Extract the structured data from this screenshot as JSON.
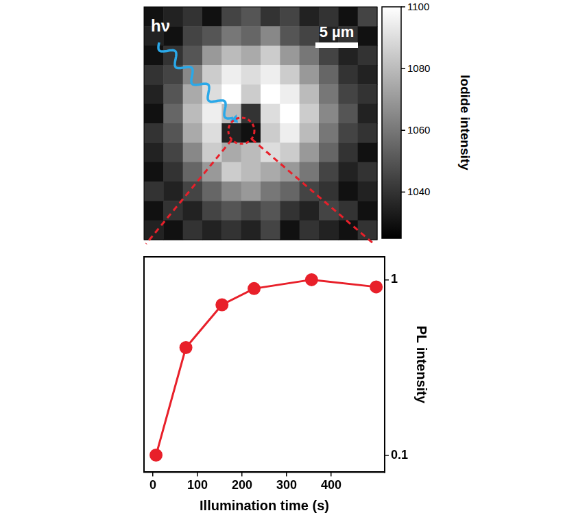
{
  "chart_data": [
    {
      "type": "heatmap",
      "annotations": [
        "hν",
        "5 µm"
      ],
      "cells": [
        [
          1030,
          1035,
          1040,
          1030,
          1045,
          1050,
          1040,
          1045,
          1035,
          1040,
          1030,
          1045
        ],
        [
          1035,
          1030,
          1045,
          1050,
          1060,
          1055,
          1065,
          1050,
          1045,
          1035,
          1040,
          1030
        ],
        [
          1030,
          1040,
          1050,
          1070,
          1080,
          1075,
          1085,
          1070,
          1060,
          1045,
          1035,
          1040
        ],
        [
          1040,
          1045,
          1065,
          1085,
          1095,
          1090,
          1095,
          1085,
          1070,
          1055,
          1040,
          1035
        ],
        [
          1035,
          1050,
          1075,
          1090,
          1100,
          1085,
          1100,
          1095,
          1080,
          1060,
          1045,
          1040
        ],
        [
          1030,
          1055,
          1080,
          1095,
          1080,
          1040,
          1090,
          1100,
          1085,
          1065,
          1050,
          1035
        ],
        [
          1040,
          1050,
          1075,
          1090,
          1035,
          1030,
          1085,
          1095,
          1080,
          1060,
          1045,
          1040
        ],
        [
          1035,
          1045,
          1065,
          1085,
          1075,
          1080,
          1090,
          1085,
          1070,
          1055,
          1040,
          1030
        ],
        [
          1030,
          1040,
          1055,
          1070,
          1085,
          1080,
          1075,
          1070,
          1060,
          1045,
          1035,
          1040
        ],
        [
          1040,
          1035,
          1045,
          1055,
          1065,
          1070,
          1060,
          1055,
          1045,
          1040,
          1030,
          1035
        ],
        [
          1030,
          1040,
          1035,
          1045,
          1050,
          1045,
          1050,
          1040,
          1035,
          1045,
          1040,
          1030
        ],
        [
          1035,
          1030,
          1040,
          1035,
          1040,
          1035,
          1045,
          1030,
          1040,
          1035,
          1030,
          1040
        ]
      ],
      "colorbar": {
        "label": "Iodide intensity",
        "range": [
          1025,
          1100
        ],
        "ticks": [
          1040,
          1060,
          1080,
          1100
        ]
      }
    },
    {
      "type": "line",
      "x_label": "Illumination time (s)",
      "y_label": "PL intensity",
      "x": [
        7,
        74,
        155,
        227,
        356,
        501
      ],
      "values": [
        0.1,
        0.41,
        0.72,
        0.89,
        1.0,
        0.91
      ],
      "color": "#e8202a",
      "marker": "circle",
      "log": "y",
      "grid": false,
      "xlim": [
        -20,
        520
      ],
      "xticks": [
        0,
        100,
        200,
        300,
        400
      ],
      "ylim": [
        0.08,
        1.35
      ],
      "yticks": [
        0.1,
        1
      ]
    }
  ]
}
